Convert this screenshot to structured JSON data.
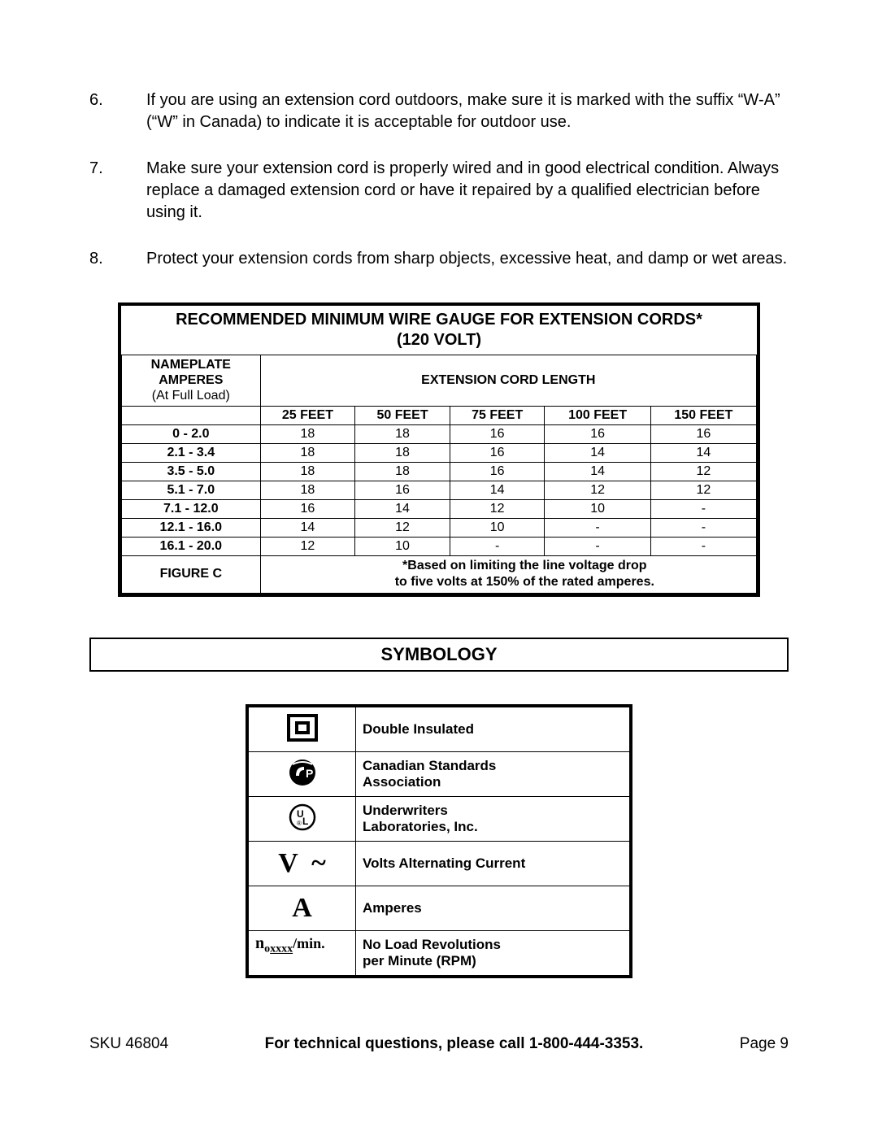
{
  "list_items": [
    {
      "num": "6.",
      "text": "If you are using an extension cord outdoors, make sure it is marked with the suffix “W-A” (“W” in Canada) to indicate it is acceptable for outdoor use."
    },
    {
      "num": "7.",
      "text": "Make sure your extension cord is properly wired and in good electrical condition. Always replace a damaged extension cord or have it repaired by a qualified electrician before using it."
    },
    {
      "num": "8.",
      "text": "Protect your extension cords from sharp objects, excessive heat, and damp or wet areas."
    }
  ],
  "wire_table": {
    "title": "RECOMMENDED MINIMUM WIRE GAUGE FOR EXTENSION CORDS*",
    "subtitle": "(120 VOLT)",
    "nameplate_head_l1": "NAMEPLATE",
    "nameplate_head_l2": "AMPERES",
    "nameplate_head_l3": "(At Full Load)",
    "ext_head": "EXTENSION CORD LENGTH",
    "length_heads": [
      "25 FEET",
      "50 FEET",
      "75 FEET",
      "100 FEET",
      "150 FEET"
    ],
    "rows": [
      {
        "range": "0 - 2.0",
        "v": [
          "18",
          "18",
          "16",
          "16",
          "16"
        ]
      },
      {
        "range": "2.1 - 3.4",
        "v": [
          "18",
          "18",
          "16",
          "14",
          "14"
        ]
      },
      {
        "range": "3.5 - 5.0",
        "v": [
          "18",
          "18",
          "16",
          "14",
          "12"
        ]
      },
      {
        "range": "5.1 - 7.0",
        "v": [
          "18",
          "16",
          "14",
          "12",
          "12"
        ]
      },
      {
        "range": "7.1 - 12.0",
        "v": [
          "16",
          "14",
          "12",
          "10",
          "-"
        ]
      },
      {
        "range": "12.1 - 16.0",
        "v": [
          "14",
          "12",
          "10",
          "-",
          "-"
        ]
      },
      {
        "range": "16.1 - 20.0",
        "v": [
          "12",
          "10",
          "-",
          "-",
          "-"
        ]
      }
    ],
    "figure_label": "FIGURE C",
    "footnote_l1": "*Based on limiting the line voltage drop",
    "footnote_l2": "to five volts at 150% of the rated amperes."
  },
  "symbology": {
    "heading": "SYMBOLOGY",
    "rows": [
      {
        "icon": "double-insulated",
        "label": "Double Insulated"
      },
      {
        "icon": "csa",
        "label_l1": "Canadian Standards",
        "label_l2": "Association"
      },
      {
        "icon": "ul",
        "label_l1": "Underwriters",
        "label_l2": "Laboratories, Inc."
      },
      {
        "icon": "vac",
        "label": "Volts Alternating Current"
      },
      {
        "icon": "amp",
        "label": "Amperes"
      },
      {
        "icon": "rpm",
        "label_l1": "No Load Revolutions",
        "label_l2": "per Minute (RPM)"
      }
    ],
    "rpm_symbol_n": "n",
    "rpm_symbol_o": "o",
    "rpm_symbol_x": "xxxx",
    "rpm_symbol_min": "/min."
  },
  "footer": {
    "sku_label": "SKU 46804",
    "mid": "For technical questions, please call 1-800-444-3353.",
    "page": "Page 9"
  }
}
